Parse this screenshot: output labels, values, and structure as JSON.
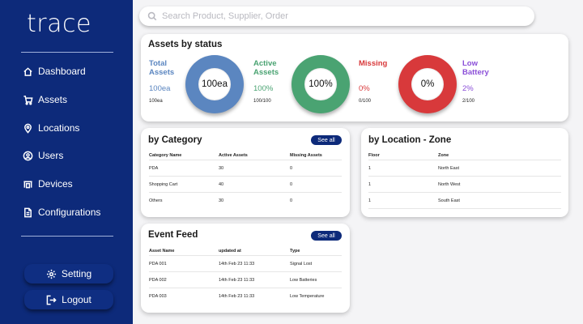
{
  "app": {
    "logo": "trace"
  },
  "sidebar": {
    "items": [
      {
        "label": "Dashboard",
        "icon": "home-icon"
      },
      {
        "label": "Assets",
        "icon": "cart-icon"
      },
      {
        "label": "Locations",
        "icon": "pin-icon"
      },
      {
        "label": "Users",
        "icon": "user-icon"
      },
      {
        "label": "Devices",
        "icon": "device-icon"
      },
      {
        "label": "Configurations",
        "icon": "document-icon"
      }
    ],
    "setting_label": "Setting",
    "logout_label": "Logout"
  },
  "search": {
    "placeholder": "Search Product, Supplier, Order"
  },
  "status": {
    "title": "Assets by status",
    "total": {
      "label1": "Total",
      "label2": "Assets",
      "value": "100ea",
      "fraction": "100ea",
      "ring": "100ea",
      "color": "#5b86c0"
    },
    "active": {
      "label1": "Active",
      "label2": "Assets",
      "value": "100%",
      "fraction": "100/100",
      "ring": "100%",
      "color": "#4aa372"
    },
    "missing": {
      "label1": "Missing",
      "value": "0%",
      "fraction": "0/100",
      "ring": "0%",
      "color": "#d8393b"
    },
    "low": {
      "label1": "Low",
      "label2": "Battery",
      "value": "2%",
      "fraction": "2/100",
      "color": "#8b4fd8"
    }
  },
  "category": {
    "title": "by Category",
    "see_all": "See all",
    "headers": [
      "Category Name",
      "Active Assets",
      "Missing Assets"
    ],
    "rows": [
      [
        "PDA",
        "30",
        "0"
      ],
      [
        "Shopping Cart",
        "40",
        "0"
      ],
      [
        "Others",
        "30",
        "0"
      ]
    ]
  },
  "location": {
    "title": "by Location - Zone",
    "headers": [
      "Floor",
      "Zone"
    ],
    "rows": [
      [
        "1",
        "North East"
      ],
      [
        "1",
        "North West"
      ],
      [
        "1",
        "South East"
      ]
    ]
  },
  "events": {
    "title": "Event Feed",
    "see_all": "See all",
    "headers": [
      "Asset Name",
      "updated at",
      "Type"
    ],
    "rows": [
      [
        "PDA 001",
        "14th Feb 23 11:33",
        "Signal Lost"
      ],
      [
        "PDA 002",
        "14th Feb 23 11:33",
        "Low Batteries"
      ],
      [
        "PDA 003",
        "14th Feb 23 11:33",
        "Low Temperature"
      ]
    ]
  }
}
